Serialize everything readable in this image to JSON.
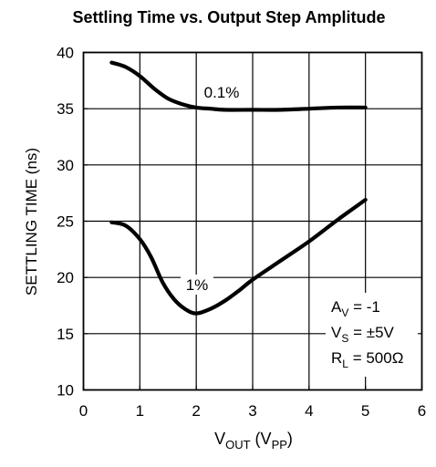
{
  "chart_data": {
    "type": "line",
    "title": "Settling Time vs. Output Step Amplitude",
    "xlabel": {
      "main": "V",
      "sub1": "OUT",
      "mid": " (V",
      "sub2": "PP",
      "end": ")"
    },
    "ylabel": "SETTLING TIME (ns)",
    "xlim": [
      0,
      6
    ],
    "ylim": [
      10,
      40
    ],
    "xticks": [
      0,
      1,
      2,
      3,
      4,
      5,
      6
    ],
    "yticks": [
      10,
      15,
      20,
      25,
      30,
      35,
      40
    ],
    "grid": true,
    "series": [
      {
        "name": "0.1%",
        "points": [
          [
            0.5,
            39.1
          ],
          [
            0.75,
            38.7
          ],
          [
            1.0,
            37.9
          ],
          [
            1.25,
            36.8
          ],
          [
            1.5,
            35.9
          ],
          [
            1.75,
            35.4
          ],
          [
            2.0,
            35.1
          ],
          [
            2.25,
            35.0
          ],
          [
            2.5,
            34.9
          ],
          [
            3.0,
            34.9
          ],
          [
            3.5,
            34.9
          ],
          [
            4.0,
            35.0
          ],
          [
            4.5,
            35.1
          ],
          [
            5.0,
            35.1
          ]
        ]
      },
      {
        "name": "1%",
        "points": [
          [
            0.5,
            24.9
          ],
          [
            0.75,
            24.6
          ],
          [
            1.0,
            23.4
          ],
          [
            1.2,
            21.8
          ],
          [
            1.4,
            19.6
          ],
          [
            1.6,
            18.1
          ],
          [
            1.8,
            17.2
          ],
          [
            2.0,
            16.8
          ],
          [
            2.25,
            17.2
          ],
          [
            2.5,
            17.9
          ],
          [
            2.75,
            18.8
          ],
          [
            3.0,
            19.8
          ],
          [
            3.5,
            21.5
          ],
          [
            4.0,
            23.2
          ],
          [
            4.5,
            25.1
          ],
          [
            5.0,
            26.9
          ]
        ]
      }
    ],
    "annotations": {
      "av": {
        "main": "A",
        "sub": "V",
        "value": " = -1"
      },
      "vs": {
        "main": "V",
        "sub": "S",
        "value": " = ±5V"
      },
      "rl": {
        "main": "R",
        "sub": "L",
        "value": " = 500Ω"
      }
    }
  }
}
